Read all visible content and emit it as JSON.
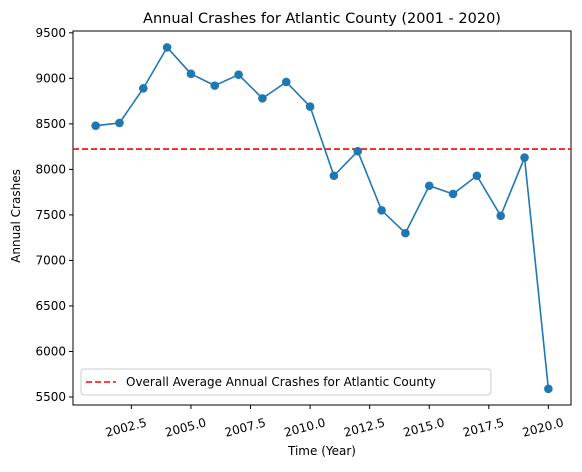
{
  "chart_data": {
    "type": "line",
    "title": "Annual Crashes for Atlantic County (2001 - 2020)",
    "xlabel": "Time (Year)",
    "ylabel": "Annual Crashes",
    "x": [
      2001,
      2002,
      2003,
      2004,
      2005,
      2006,
      2007,
      2008,
      2009,
      2010,
      2011,
      2012,
      2013,
      2014,
      2015,
      2016,
      2017,
      2018,
      2019,
      2020
    ],
    "series": [
      {
        "values": [
          8480,
          8510,
          8890,
          9340,
          9050,
          8920,
          9040,
          8780,
          8960,
          8690,
          7930,
          8200,
          7550,
          7300,
          7820,
          7730,
          7930,
          7490,
          8130,
          5590
        ],
        "color": "#1f77b4",
        "marker": "circle"
      }
    ],
    "reference_line": {
      "label": "Overall Average Annual Crashes for Atlantic County",
      "value": 8223,
      "color": "#ff0000",
      "style": "dashed"
    },
    "xlim": [
      2000.05,
      2020.95
    ],
    "ylim": [
      5412,
      9520
    ],
    "x_ticks": [
      2002.5,
      2005.0,
      2007.5,
      2010.0,
      2012.5,
      2015.0,
      2017.5,
      2020.0
    ],
    "x_tick_labels": [
      "2002.5",
      "2005.0",
      "2007.5",
      "2010.0",
      "2012.5",
      "2015.0",
      "2017.5",
      "2020.0"
    ],
    "y_ticks": [
      5500,
      6000,
      6500,
      7000,
      7500,
      8000,
      8500,
      9000,
      9500
    ],
    "y_tick_labels": [
      "5500",
      "6000",
      "6500",
      "7000",
      "7500",
      "8000",
      "8500",
      "9000",
      "9500"
    ],
    "x_tick_rotation": 15,
    "grid": false,
    "legend_position": "lower-left"
  }
}
